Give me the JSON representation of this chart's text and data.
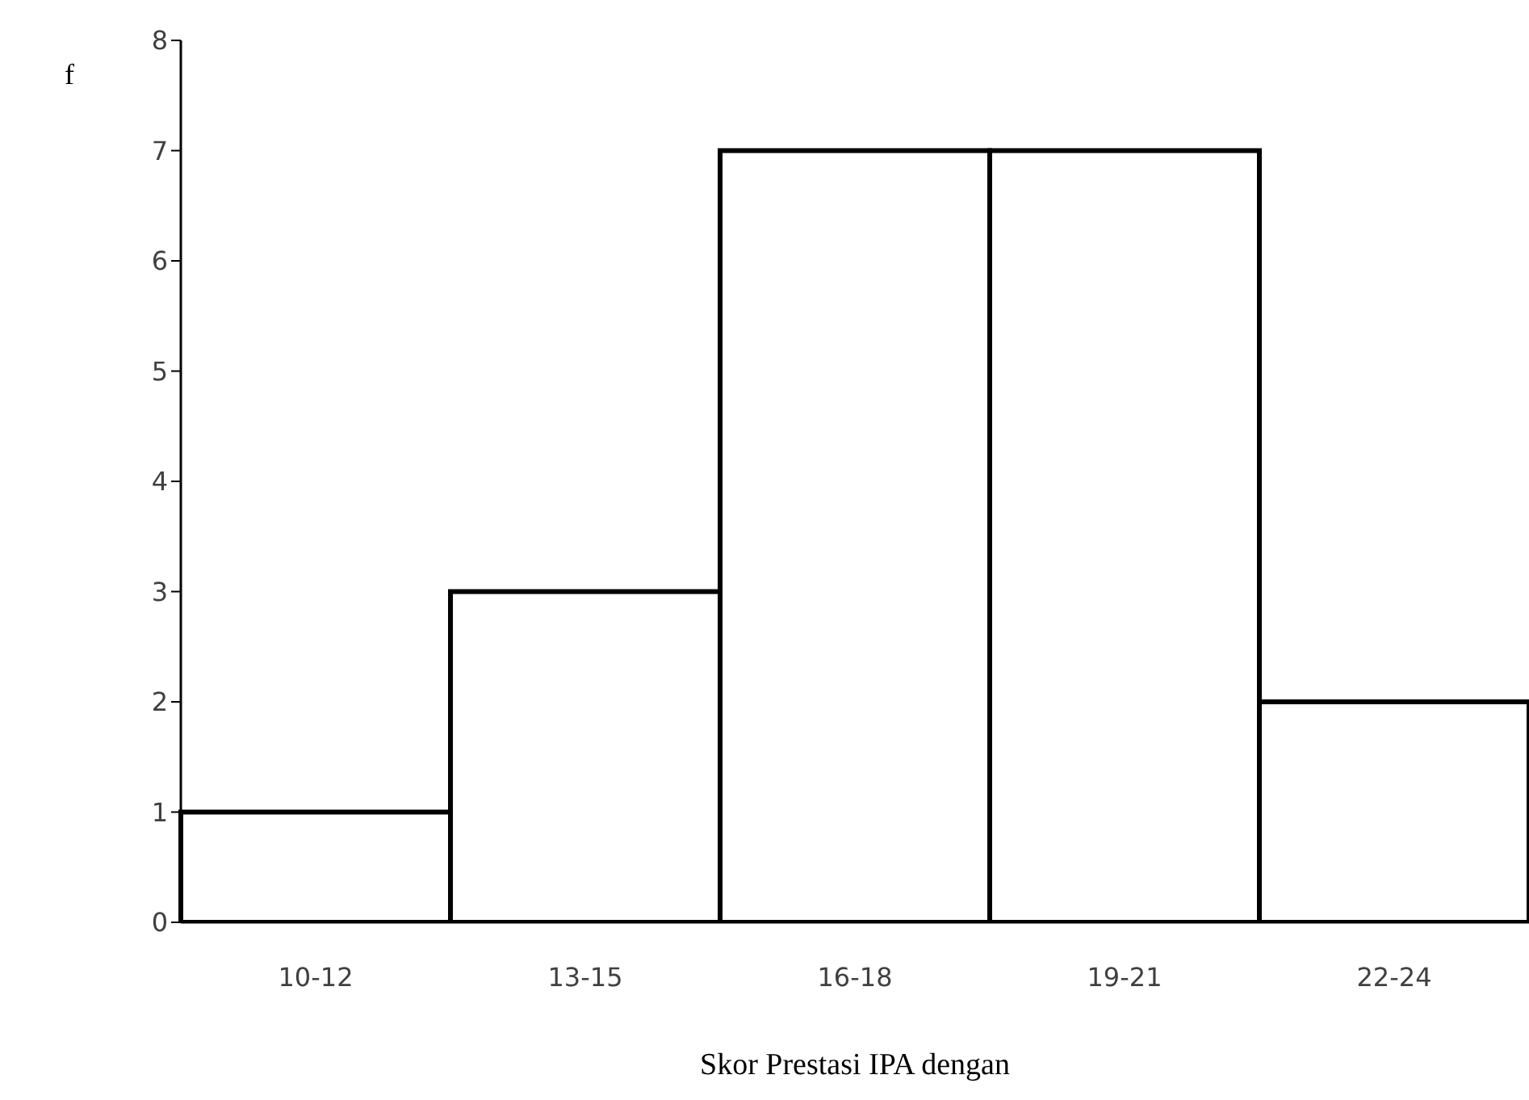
{
  "chart_data": {
    "type": "bar",
    "xlabel": "Skor Prestasi IPA dengan",
    "ylabel": "f",
    "categories": [
      "10-12",
      "13-15",
      "16-18",
      "19-21",
      "22-24"
    ],
    "values": [
      1,
      3,
      7,
      7,
      2
    ],
    "color": "#ffffff",
    "ylim": [
      0,
      8
    ],
    "yticks": [
      0,
      1,
      2,
      3,
      4,
      5,
      6,
      7,
      8
    ],
    "grid": false,
    "legend": false
  }
}
